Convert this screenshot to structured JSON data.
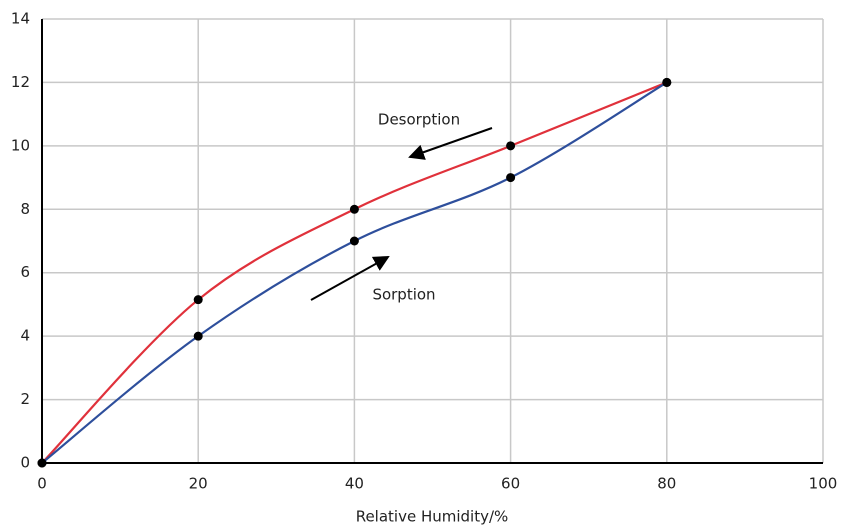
{
  "chart_data": {
    "type": "line",
    "x": [
      0,
      20,
      40,
      60,
      80
    ],
    "xlabel": "Relative Humidity/%",
    "series": [
      {
        "name": "Desorption",
        "color": "#e0313b",
        "values": [
          0,
          5.15,
          8,
          10,
          12
        ]
      },
      {
        "name": "Sorption",
        "color": "#2e4f9c",
        "values": [
          0,
          4,
          7,
          9,
          12
        ]
      }
    ],
    "xlim": [
      0,
      100
    ],
    "xticks": [
      0,
      20,
      40,
      60,
      80,
      100
    ],
    "ylim": [
      0,
      14
    ],
    "yticks": [
      0,
      2,
      4,
      6,
      8,
      10,
      12,
      14
    ],
    "grid": true,
    "smooth": true,
    "marker_color": "#000000"
  }
}
